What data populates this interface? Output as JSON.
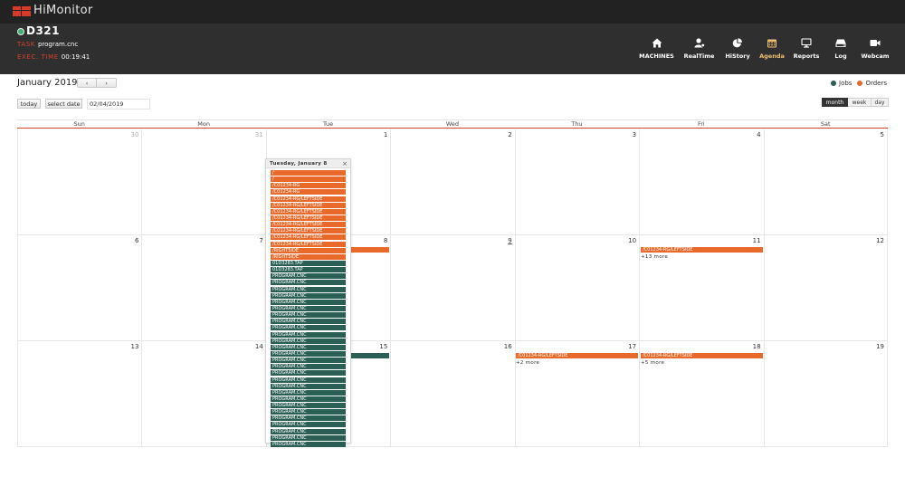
{
  "app": {
    "name": "HiMonitor"
  },
  "machine": {
    "id": "D321",
    "task_label": "TASK",
    "task_value": "program.cnc",
    "exec_label": "EXEC. TIME",
    "exec_value": "00:19:41"
  },
  "nav": [
    {
      "label": "MACHINES",
      "icon": "home-icon"
    },
    {
      "label": "RealTime",
      "icon": "user-gear-icon"
    },
    {
      "label": "HiStory",
      "icon": "pie-chart-icon"
    },
    {
      "label": "Agenda",
      "icon": "calendar-icon",
      "active": true
    },
    {
      "label": "Reports",
      "icon": "monitor-icon"
    },
    {
      "label": "Log",
      "icon": "hard-drive-icon"
    },
    {
      "label": "Webcam",
      "icon": "video-camera-icon"
    }
  ],
  "toolbar": {
    "month_title": "January 2019",
    "prev": "‹",
    "next": "›",
    "today": "today",
    "select_date": "select date",
    "date_value": "02/04/2019"
  },
  "legend": {
    "jobs": "Jobs",
    "orders": "Orders",
    "jobs_color": "#2b5f55",
    "orders_color": "#e8692a"
  },
  "views": {
    "month": "month",
    "week": "week",
    "day": "day"
  },
  "calendar": {
    "weekdays": [
      "Sun",
      "Mon",
      "Tue",
      "Wed",
      "Thu",
      "Fri",
      "Sat"
    ],
    "weeks": [
      [
        "30",
        "31",
        "1",
        "2",
        "3",
        "4",
        "5"
      ],
      [
        "6",
        "7",
        "8",
        "9",
        "10",
        "11",
        "12"
      ],
      [
        "13",
        "14",
        "15",
        "16",
        "17",
        "18",
        "19"
      ]
    ],
    "events": {
      "fri11": "/C01234-RG/LEFTSIDE",
      "fri11_more": "+13 more",
      "thu17": "/C01234-RG/LEFTSIDE",
      "thu17_more": "+2 more",
      "fri18": "/C01234-RG/LEFTSIDE",
      "fri18_more": "+5 more"
    }
  },
  "popover": {
    "title": "Tuesday, January 8",
    "close": "×",
    "events": [
      {
        "type": "order",
        "label": "/"
      },
      {
        "type": "order",
        "label": "/"
      },
      {
        "type": "order",
        "label": "/C01234-RG"
      },
      {
        "type": "order",
        "label": "/C01234-RG"
      },
      {
        "type": "order",
        "label": "/C01234-RG/LEFTSIDE"
      },
      {
        "type": "order",
        "label": "/C01234-RG/LEFTSIDE"
      },
      {
        "type": "order",
        "label": "/C01234-RG/LEFTSIDE"
      },
      {
        "type": "order",
        "label": "/C01234-RG/LEFTSIDE"
      },
      {
        "type": "order",
        "label": "/C01234-RG/LEFTSIDE"
      },
      {
        "type": "order",
        "label": "/C01234-RG/LEFTSIDE"
      },
      {
        "type": "order",
        "label": "/C01234-RG/LEFTSIDE"
      },
      {
        "type": "order",
        "label": "/C01234-RG/LEFTSIDE"
      },
      {
        "type": "order",
        "label": "/RIGHTSIDE"
      },
      {
        "type": "order",
        "label": "/RIGHTSIDE"
      },
      {
        "type": "job",
        "label": "01D3283.TAP"
      },
      {
        "type": "job",
        "label": "01D3283.TAP"
      },
      {
        "type": "job",
        "label": "PROGRAM.CNC"
      },
      {
        "type": "job",
        "label": "PROGRAM.CNC"
      },
      {
        "type": "job",
        "label": "PROGRAM.CNC"
      },
      {
        "type": "job",
        "label": "PROGRAM.CNC"
      },
      {
        "type": "job",
        "label": "PROGRAM.CNC"
      },
      {
        "type": "job",
        "label": "PROGRAM.CNC"
      },
      {
        "type": "job",
        "label": "PROGRAM.CNC"
      },
      {
        "type": "job",
        "label": "PROGRAM.CNC"
      },
      {
        "type": "job",
        "label": "PROGRAM.CNC"
      },
      {
        "type": "job",
        "label": "PROGRAM.CNC"
      },
      {
        "type": "job",
        "label": "PROGRAM.CNC"
      },
      {
        "type": "job",
        "label": "PROGRAM.CNC"
      },
      {
        "type": "job",
        "label": "PROGRAM.CNC"
      },
      {
        "type": "job",
        "label": "PROGRAM.CNC"
      },
      {
        "type": "job",
        "label": "PROGRAM.CNC"
      },
      {
        "type": "job",
        "label": "PROGRAM.CNC"
      },
      {
        "type": "job",
        "label": "PROGRAM.CNC"
      },
      {
        "type": "job",
        "label": "PROGRAM.CNC"
      },
      {
        "type": "job",
        "label": "PROGRAM.CNC"
      },
      {
        "type": "job",
        "label": "PROGRAM.CNC"
      },
      {
        "type": "job",
        "label": "PROGRAM.CNC"
      },
      {
        "type": "job",
        "label": "PROGRAM.CNC"
      },
      {
        "type": "job",
        "label": "PROGRAM.CNC"
      },
      {
        "type": "job",
        "label": "PROGRAM.CNC"
      },
      {
        "type": "job",
        "label": "PROGRAM.CNC"
      },
      {
        "type": "job",
        "label": "PROGRAM.CNC"
      },
      {
        "type": "job",
        "label": "PROGRAM.CNC"
      }
    ]
  }
}
